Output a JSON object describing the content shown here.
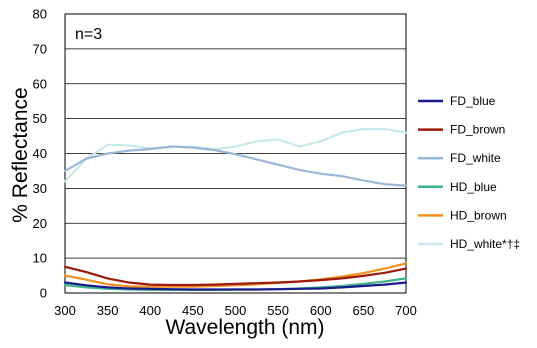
{
  "chart_data": {
    "type": "line",
    "title": "",
    "xlabel": "Wavelength (nm)",
    "ylabel": "% Reflectance",
    "annotation": "n=3",
    "xlim": [
      300,
      700
    ],
    "ylim": [
      0,
      80
    ],
    "xticks": [
      "300",
      "350",
      "400",
      "450",
      "500",
      "550",
      "600",
      "650",
      "700"
    ],
    "yticks": [
      "0",
      "10",
      "20",
      "30",
      "40",
      "50",
      "60",
      "70",
      "80"
    ],
    "grid": "horizontal",
    "legend_position": "right",
    "x": [
      300,
      325,
      350,
      375,
      400,
      425,
      450,
      475,
      500,
      525,
      550,
      575,
      600,
      625,
      650,
      675,
      700
    ],
    "series": [
      {
        "name": "FD_blue",
        "color": "#1a1a8c",
        "values": [
          3.0,
          2.2,
          1.6,
          1.3,
          1.2,
          1.1,
          1.0,
          1.0,
          1.0,
          1.0,
          1.1,
          1.2,
          1.3,
          1.6,
          2.0,
          2.4,
          3.0
        ]
      },
      {
        "name": "FD_brown",
        "color": "#9b1a0a",
        "values": [
          7.5,
          6.0,
          4.2,
          3.0,
          2.4,
          2.3,
          2.3,
          2.4,
          2.6,
          2.8,
          3.0,
          3.3,
          3.7,
          4.2,
          4.9,
          5.8,
          7.0
        ]
      },
      {
        "name": "FD_white",
        "color": "#9ab8d6",
        "values": [
          35.0,
          38.5,
          40.0,
          40.8,
          41.3,
          42.0,
          41.7,
          41.0,
          39.8,
          38.3,
          36.8,
          35.3,
          34.2,
          33.5,
          32.3,
          31.2,
          30.8
        ]
      },
      {
        "name": "HD_blue",
        "color": "#3fb38a",
        "values": [
          2.3,
          1.6,
          1.2,
          1.0,
          0.9,
          0.9,
          0.9,
          0.9,
          1.0,
          1.0,
          1.1,
          1.3,
          1.6,
          2.0,
          2.6,
          3.3,
          4.2
        ]
      },
      {
        "name": "HD_brown",
        "color": "#f0901e",
        "values": [
          5.0,
          3.8,
          2.5,
          1.9,
          1.8,
          1.8,
          1.8,
          2.0,
          2.2,
          2.5,
          2.9,
          3.3,
          3.9,
          4.7,
          5.7,
          7.0,
          8.5
        ]
      },
      {
        "name": "HD_white*†‡",
        "color": "#c8e8ea",
        "values": [
          32.0,
          38.5,
          42.5,
          42.3,
          41.5,
          41.8,
          42.0,
          41.2,
          42.0,
          43.5,
          44.0,
          42.0,
          43.5,
          46.0,
          47.0,
          47.0,
          46.0
        ]
      }
    ]
  }
}
